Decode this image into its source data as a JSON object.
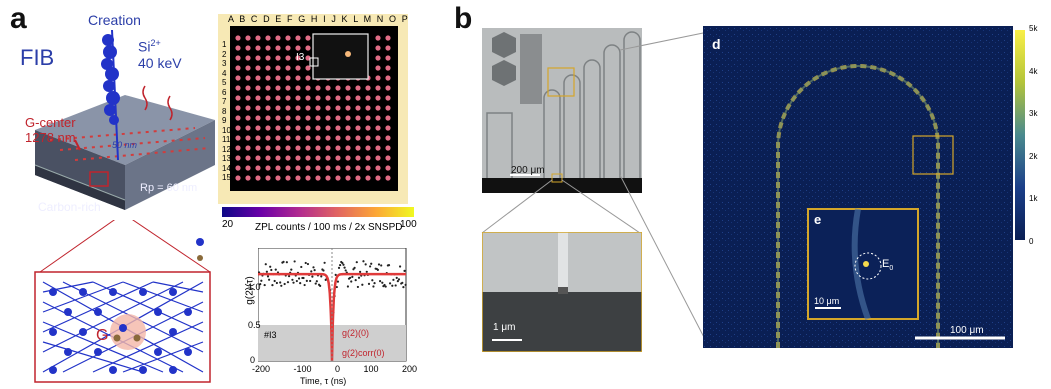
{
  "panel_a": {
    "letter": "a",
    "fib_label": "FIB",
    "creation_label": "Creation",
    "ion_label": "Si",
    "ion_charge": "2+",
    "ion_energy": "40 keV",
    "g_center_label": "G-center",
    "g_center_wavelength": "1278 nm",
    "spacing_label": "50 nm",
    "rp_label": "Rp = 60 nm",
    "carbon_label": "Carbon-rich",
    "lattice_defect_label": "G",
    "map_columns": [
      "A",
      "B",
      "C",
      "D",
      "E",
      "F",
      "G",
      "H",
      "I",
      "J",
      "K",
      "L",
      "M",
      "N",
      "O",
      "P"
    ],
    "map_rows": [
      "1",
      "2",
      "3",
      "4",
      "5",
      "6",
      "7",
      "8",
      "9",
      "10",
      "11",
      "12",
      "13",
      "14",
      "15"
    ],
    "inset_label": "I3",
    "colorbar_min": "20",
    "colorbar_max": "100",
    "colorbar_label": "ZPL counts / 100 ms / 2x SNSPD",
    "g2_ylabel": "g(2)(τ)",
    "g2_xlabel": "Time, τ (ns)",
    "g2_xticks": [
      "-200",
      "-100",
      "0",
      "100",
      "200"
    ],
    "g2_yticks": [
      "1.0",
      "0.5",
      "0"
    ],
    "g2_sample_label": "#I3",
    "g2_annot1": "g(2)(0)",
    "g2_annot2": "g(2)corr(0)"
  },
  "panel_b": {
    "letter": "b",
    "scale_optical": "200 μm",
    "scale_sem": "1 μm"
  },
  "panel_d": {
    "letter": "d",
    "colorbar_ticks": [
      "5k",
      "4k",
      "3k",
      "2k",
      "1k",
      "0"
    ],
    "scale": "100 μm"
  },
  "panel_e": {
    "letter": "e",
    "scale": "10 μm",
    "emitter_label": "E",
    "emitter_sub": "0"
  },
  "chart_data": {
    "type": "scatter",
    "xlabel": "Time, τ (ns)",
    "ylabel": "g(2)(τ)",
    "xlim": [
      -200,
      200
    ],
    "ylim": [
      0,
      1.3
    ],
    "baseline": 1.0,
    "dip_value": 0.0,
    "threshold": 0.5
  },
  "colors": {
    "accent_red": "#c0242d",
    "lattice_blue": "#2233c8",
    "gold_frame": "#c9a227",
    "map_bg": "#000000",
    "fit_red": "#e03a3a"
  }
}
